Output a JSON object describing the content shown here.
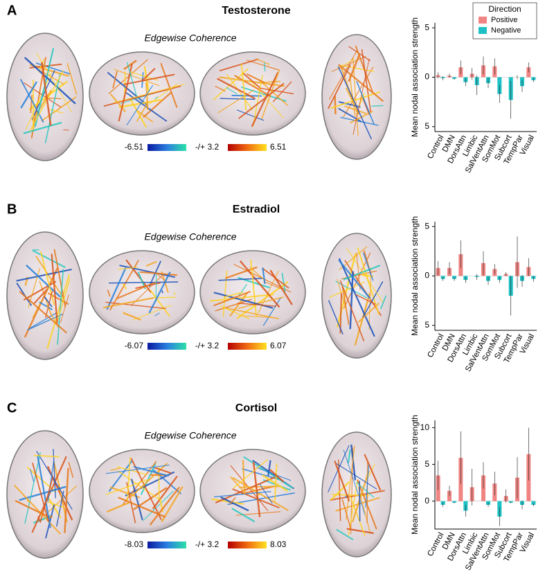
{
  "chart_data": [
    {
      "type": "bar",
      "panel": "A",
      "title": "Testosterone",
      "subtitle": "Edgewise Coherence",
      "colorbar_labels": [
        "-6.51",
        "-/+ 3.2",
        "6.51"
      ],
      "ylabel": "Mean nodal association strength",
      "legend_title": "Direction",
      "legend": "top-right",
      "categories": [
        "Control",
        "DMN",
        "DorsAttn",
        "Limbic",
        "SalVentAttn",
        "SomMot",
        "Subcort",
        "TempPar",
        "Visual"
      ],
      "series": [
        {
          "name": "Positive",
          "color": "#f08482",
          "values": [
            0.2,
            0.15,
            1.0,
            0.35,
            1.2,
            1.1,
            0,
            0,
            1.0
          ],
          "errors": [
            0.3,
            0.2,
            0.7,
            0.6,
            0.9,
            0.8,
            0,
            0.2,
            0.5
          ]
        },
        {
          "name": "Negative",
          "color": "#1dc1c5",
          "values": [
            -0.1,
            -0.15,
            -0.5,
            -0.8,
            -0.6,
            -1.7,
            -2.3,
            -0.9,
            -0.3
          ],
          "errors": [
            0.2,
            0.1,
            0.4,
            1.0,
            0.5,
            0.9,
            1.9,
            0.6,
            0.2
          ]
        }
      ],
      "ylim": [
        -5.5,
        5.5
      ],
      "yticks": [
        5,
        0,
        {
          "value": -5,
          "label": "5"
        }
      ]
    },
    {
      "type": "bar",
      "panel": "B",
      "title": "Estradiol",
      "subtitle": "Edgewise Coherence",
      "colorbar_labels": [
        "-6.07",
        "-/+ 3.2",
        "6.07"
      ],
      "ylabel": "Mean nodal association strength",
      "categories": [
        "Control",
        "DMN",
        "DorsAttn",
        "Limbic",
        "SalVentAttn",
        "SomMot",
        "Subcort",
        "TempPar",
        "Visual"
      ],
      "series": [
        {
          "name": "Positive",
          "color": "#f08482",
          "values": [
            0.8,
            0.8,
            2.2,
            0,
            1.3,
            0.7,
            0.2,
            1.4,
            0.9
          ],
          "errors": [
            0.7,
            0.6,
            1.4,
            0,
            1.2,
            0.5,
            0.2,
            2.6,
            0.9
          ]
        },
        {
          "name": "Negative",
          "color": "#1dc1c5",
          "values": [
            -0.3,
            -0.3,
            -0.4,
            -0.1,
            -0.5,
            -0.4,
            -2.0,
            -0.5,
            -0.3
          ],
          "errors": [
            0.2,
            0.2,
            0.3,
            0.3,
            0.4,
            0.3,
            2.0,
            0.6,
            0.3
          ]
        }
      ],
      "ylim": [
        -5.5,
        5.5
      ],
      "yticks": [
        5,
        0,
        {
          "value": -5,
          "label": "5"
        }
      ]
    },
    {
      "type": "bar",
      "panel": "C",
      "title": "Cortisol",
      "subtitle": "Edgewise Coherence",
      "colorbar_labels": [
        "-8.03",
        "-/+ 3.2",
        "8.03"
      ],
      "ylabel": "Mean nodal association strength",
      "categories": [
        "Control",
        "DMN",
        "DorsAttn",
        "Limbic",
        "SalVentAttn",
        "SomMot",
        "Subcort",
        "TempPar",
        "Visual"
      ],
      "series": [
        {
          "name": "Positive",
          "color": "#f08482",
          "values": [
            3.5,
            1.4,
            5.9,
            1.9,
            3.5,
            2.4,
            0.7,
            3.2,
            6.4
          ],
          "errors": [
            2.0,
            0.7,
            3.6,
            2.5,
            1.8,
            1.6,
            0.9,
            2.8,
            3.6
          ]
        },
        {
          "name": "Negative",
          "color": "#1dc1c5",
          "values": [
            -0.5,
            -0.2,
            -1.3,
            0,
            -0.5,
            -2.1,
            -0.2,
            -0.5,
            -0.5
          ],
          "errors": [
            0.3,
            0.1,
            0.8,
            0,
            0.3,
            1.3,
            0.1,
            0.6,
            0.2
          ]
        }
      ],
      "ylim": [
        -3.8,
        11
      ],
      "yticks": [
        10,
        5,
        0
      ]
    }
  ]
}
